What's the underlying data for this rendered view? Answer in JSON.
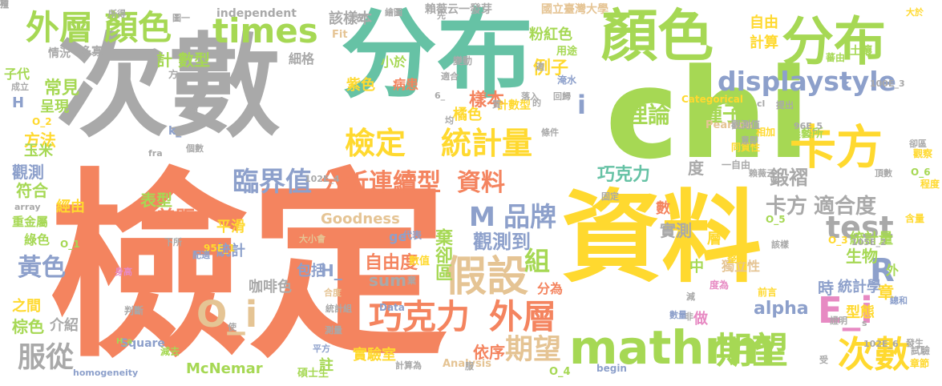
{
  "words": [
    {
      "text": "檢定",
      "color": "#f4845f"
    },
    {
      "text": "次數",
      "color": "#a9a9a9"
    },
    {
      "text": "分布",
      "color": "#66c2a5"
    },
    {
      "text": "資料",
      "color": "#ffd92f"
    },
    {
      "text": "chi",
      "color": "#a6d854"
    },
    {
      "text": "顏色",
      "color": "#a6d854"
    },
    {
      "text": "分布",
      "color": "#a6d854"
    },
    {
      "text": "卡方",
      "color": "#ffd92f"
    },
    {
      "text": "mathrm",
      "color": "#a6d854"
    },
    {
      "text": "期望",
      "color": "#a6d854"
    },
    {
      "text": "次數",
      "color": "#ffd92f"
    },
    {
      "text": "檢定",
      "color": "#ffd92f"
    },
    {
      "text": "統計量",
      "color": "#ffd92f"
    },
    {
      "text": "外層",
      "color": "#a6d854"
    },
    {
      "text": "顏色",
      "color": "#a6d854"
    },
    {
      "text": "times",
      "color": "#a6d854"
    },
    {
      "text": "displaystyle",
      "color": "#8da0cb"
    },
    {
      "text": "test",
      "color": "#a9a9a9"
    },
    {
      "text": "巧克力",
      "color": "#f4845f"
    },
    {
      "text": "外層",
      "color": "#f4845f"
    },
    {
      "text": "假設",
      "color": "#e5c494"
    },
    {
      "text": "O_i",
      "color": "#e5c494"
    },
    {
      "text": "E_i",
      "color": "#e78ac3"
    },
    {
      "text": "M",
      "color": "#8da0cb"
    },
    {
      "text": "品牌",
      "color": "#8da0cb"
    },
    {
      "text": "分析連續型",
      "color": "#f4845f"
    },
    {
      "text": "資料",
      "color": "#f4845f"
    },
    {
      "text": "臨界值",
      "color": "#8da0cb"
    },
    {
      "text": "期望",
      "color": "#e5c494"
    },
    {
      "text": "服從",
      "color": "#a9a9a9"
    },
    {
      "text": "黃色",
      "color": "#8da0cb"
    },
    {
      "text": "R",
      "color": "#8da0cb"
    },
    {
      "text": "組",
      "color": "#a6d854"
    },
    {
      "text": "理論",
      "color": "#a6d854"
    },
    {
      "text": "卡方",
      "color": "#a9a9a9"
    },
    {
      "text": "適合度",
      "color": "#a9a9a9"
    },
    {
      "text": "i",
      "color": "#8da0cb"
    },
    {
      "text": "alpha",
      "color": "#8da0cb"
    },
    {
      "text": "巧克力",
      "color": "#66c2a5"
    },
    {
      "text": "種子",
      "color": "#a6d854"
    },
    {
      "text": "粉紅色",
      "color": "#a6d854"
    },
    {
      "text": "該樣本",
      "color": "#a9a9a9"
    },
    {
      "text": "例子",
      "color": "#ffd92f"
    },
    {
      "text": "自由",
      "color": "#ffd92f"
    },
    {
      "text": "計算",
      "color": "#ffd92f"
    },
    {
      "text": "國立臺灣大學",
      "color": "#e5c494"
    },
    {
      "text": "賴薇云一發芽",
      "color": "#a9a9a9"
    },
    {
      "text": "計 數型",
      "color": "#a6d854"
    },
    {
      "text": "小於",
      "color": "#a6d854"
    },
    {
      "text": "樣本",
      "color": "#f4845f"
    },
    {
      "text": "觀測到",
      "color": "#8da0cb"
    },
    {
      "text": "棄卻區",
      "color": "#a6d854"
    },
    {
      "text": "自由度",
      "color": "#f4845f"
    },
    {
      "text": "sum",
      "color": "#a9a9a9"
    },
    {
      "text": "Goodness",
      "color": "#e5c494"
    },
    {
      "text": "McNemar",
      "color": "#a6d854"
    },
    {
      "text": "實驗室",
      "color": "#ffd92f"
    },
    {
      "text": "依序",
      "color": "#f4845f"
    },
    {
      "text": "統計學",
      "color": "#8da0cb"
    },
    {
      "text": "生物",
      "color": "#a6d854"
    },
    {
      "text": "統計量",
      "color": "#a6d854"
    },
    {
      "text": "章",
      "color": "#ffd92f"
    },
    {
      "text": "型態",
      "color": "#ffd92f"
    },
    {
      "text": "時",
      "color": "#8da0cb"
    },
    {
      "text": "實測",
      "color": "#a9a9a9"
    },
    {
      "text": "度",
      "color": "#a9a9a9"
    },
    {
      "text": "鍛褶",
      "color": "#a9a9a9"
    },
    {
      "text": "農藝所",
      "color": "#a6d854"
    },
    {
      "text": "獨立性",
      "color": "#e5c494"
    },
    {
      "text": "常見",
      "color": "#a6d854"
    },
    {
      "text": "呈現",
      "color": "#a6d854"
    },
    {
      "text": "方法",
      "color": "#ffd92f"
    },
    {
      "text": "玉米",
      "color": "#a6d854"
    },
    {
      "text": "觀測",
      "color": "#8da0cb"
    },
    {
      "text": "符合",
      "color": "#a6d854"
    },
    {
      "text": "經由",
      "color": "#ffd92f"
    },
    {
      "text": "重金屬",
      "color": "#a6d854"
    },
    {
      "text": "綠色",
      "color": "#a6d854"
    },
    {
      "text": "棕色",
      "color": "#a6d854"
    },
    {
      "text": "之間",
      "color": "#ffd92f"
    },
    {
      "text": "介紹",
      "color": "#a9a9a9"
    },
    {
      "text": "包括",
      "color": "#8da0cb"
    },
    {
      "text": "咖啡色",
      "color": "#a9a9a9"
    },
    {
      "text": "統計",
      "color": "#8da0cb"
    },
    {
      "text": "差距",
      "color": "#f4845f"
    },
    {
      "text": "表型",
      "color": "#a6d854"
    },
    {
      "text": "平滑",
      "color": "#ffd92f"
    },
    {
      "text": "紫色",
      "color": "#ffd92f"
    },
    {
      "text": "橘色",
      "color": "#ffd92f"
    },
    {
      "text": "病患",
      "color": "#f4845f"
    },
    {
      "text": "計數型",
      "color": "#ffd92f"
    },
    {
      "text": "細格",
      "color": "#a9a9a9"
    },
    {
      "text": "情況",
      "color": "#a9a9a9"
    },
    {
      "text": "多寡",
      "color": "#a9a9a9"
    },
    {
      "text": "子代",
      "color": "#a6d854"
    },
    {
      "text": "兩",
      "color": "#a9a9a9"
    },
    {
      "text": "分為",
      "color": "#f4845f"
    },
    {
      "text": "數",
      "color": "#f4845f"
    },
    {
      "text": "中",
      "color": "#a6d854"
    },
    {
      "text": "做",
      "color": "#e78ac3"
    },
    {
      "text": "層",
      "color": "#ffd92f"
    },
    {
      "text": "外",
      "color": "#a6d854"
    },
    {
      "text": "註",
      "color": "#a6d854"
    },
    {
      "text": "H_",
      "color": "#8da0cb"
    },
    {
      "text": "H",
      "color": "#8da0cb"
    },
    {
      "text": "k_",
      "color": "#8da0cb"
    },
    {
      "text": "k",
      "color": "#8da0cb"
    },
    {
      "text": "independent",
      "color": "#a9a9a9"
    },
    {
      "text": "Fit",
      "color": "#e5c494"
    },
    {
      "text": "Data",
      "color": "#8da0cb"
    },
    {
      "text": "Square",
      "color": "#8da0cb"
    },
    {
      "text": "Analysis",
      "color": "#e5c494"
    },
    {
      "text": "Categorical",
      "color": "#ffd92f"
    },
    {
      "text": "Pearson",
      "color": "#e5c494"
    },
    {
      "text": "homogeneity",
      "color": "#8da0cb"
    },
    {
      "text": "begin",
      "color": "#8da0cb"
    },
    {
      "text": "array",
      "color": "#a9a9a9"
    },
    {
      "text": "fra",
      "color": "#a9a9a9"
    },
    {
      "text": "ge",
      "color": "#8da0cb"
    },
    {
      "text": "代表",
      "color": "#8da0cb"
    },
    {
      "text": "數值",
      "color": "#ffd92f"
    },
    {
      "text": "碩士生",
      "color": "#a6d854"
    },
    {
      "text": "用途",
      "color": "#a6d854"
    },
    {
      "text": "土壤",
      "color": "#a6d854"
    },
    {
      "text": "蕃由",
      "color": "#a6d854"
    },
    {
      "text": "整數",
      "color": "#ffd92f"
    },
    {
      "text": "前言",
      "color": "#ffd92f"
    },
    {
      "text": "含量",
      "color": "#ffd92f"
    },
    {
      "text": "觀察",
      "color": "#ffd92f"
    },
    {
      "text": "程度",
      "color": "#ffd92f"
    },
    {
      "text": "O_6",
      "color": "#a6d854"
    },
    {
      "text": "O_5",
      "color": "#a6d854"
    },
    {
      "text": "O_4",
      "color": "#a6d854"
    },
    {
      "text": "O_3",
      "color": "#ffd92f"
    },
    {
      "text": "O_2",
      "color": "#ffd92f"
    },
    {
      "text": "O_1",
      "color": "#a6d854"
    },
    {
      "text": "100E_3",
      "color": "#a9a9a9"
    },
    {
      "text": "96E_5",
      "color": "#a9a9a9"
    },
    {
      "text": "102E_4",
      "color": "#a9a9a9"
    },
    {
      "text": "95E_1",
      "color": "#ffd92f"
    },
    {
      "text": "105E_2",
      "color": "#a9a9a9"
    },
    {
      "text": "102E_6",
      "color": "#a9a9a9"
    },
    {
      "text": "H_a",
      "color": "#a6d854"
    },
    {
      "text": "計算為",
      "color": "#a9a9a9"
    },
    {
      "text": "減去",
      "color": "#a6d854"
    },
    {
      "text": "淹水",
      "color": "#8da0cb"
    },
    {
      "text": "身高",
      "color": "#e78ac3"
    },
    {
      "text": "大小會",
      "color": "#e5c494"
    },
    {
      "text": "判斷",
      "color": "#a9a9a9"
    },
    {
      "text": "統計組",
      "color": "#a9a9a9"
    },
    {
      "text": "合度",
      "color": "#e5c494"
    },
    {
      "text": "度為",
      "color": "#e78ac3"
    },
    {
      "text": "同質性",
      "color": "#ffd92f"
    },
    {
      "text": "相加",
      "color": "#ffd92f"
    },
    {
      "text": "頂數",
      "color": "#a9a9a9"
    },
    {
      "text": "觀測值",
      "color": "#a9a9a9"
    },
    {
      "text": "提出",
      "color": "#a9a9a9"
    },
    {
      "text": "一自由",
      "color": "#a9a9a9"
    },
    {
      "text": "卻區",
      "color": "#a9a9a9"
    },
    {
      "text": "發生",
      "color": "#a9a9a9"
    },
    {
      "text": "試驗",
      "color": "#a9a9a9"
    },
    {
      "text": "章節",
      "color": "#ffd92f"
    },
    {
      "text": "個數",
      "color": "#a9a9a9"
    },
    {
      "text": "成立",
      "color": "#a9a9a9"
    },
    {
      "text": "條件",
      "color": "#a9a9a9"
    },
    {
      "text": "繪圖",
      "color": "#a9a9a9"
    },
    {
      "text": "回歸",
      "color": "#a9a9a9"
    },
    {
      "text": "變動",
      "color": "#a9a9a9"
    },
    {
      "text": "適合",
      "color": "#a9a9a9"
    },
    {
      "text": "測量",
      "color": "#a9a9a9"
    },
    {
      "text": "平方",
      "color": "#8da0cb"
    },
    {
      "text": "數量",
      "color": "#8da0cb"
    },
    {
      "text": "總和",
      "color": "#8da0cb"
    },
    {
      "text": "證明",
      "color": "#a9a9a9"
    },
    {
      "text": "下所",
      "color": "#a9a9a9"
    },
    {
      "text": "配適",
      "color": "#8da0cb"
    },
    {
      "text": "大於",
      "color": "#ffd92f"
    },
    {
      "text": "所得",
      "color": "#a9a9a9"
    },
    {
      "text": "圖一",
      "color": "#a9a9a9"
    },
    {
      "text": "表",
      "color": "#a9a9a9"
    },
    {
      "text": "方",
      "color": "#a9a9a9"
    },
    {
      "text": "先",
      "color": "#a9a9a9"
    },
    {
      "text": "落入",
      "color": "#a9a9a9"
    },
    {
      "text": "賴薇云",
      "color": "#a9a9a9"
    },
    {
      "text": "固定",
      "color": "#a9a9a9"
    },
    {
      "text": "意即",
      "color": "#a9a9a9"
    },
    {
      "text": "減",
      "color": "#a9a9a9"
    },
    {
      "text": "非",
      "color": "#a9a9a9"
    },
    {
      "text": "服",
      "color": "#a9a9a9"
    },
    {
      "text": "受",
      "color": "#a9a9a9"
    },
    {
      "text": "均",
      "color": "#a9a9a9"
    },
    {
      "text": "該樣",
      "color": "#a9a9a9"
    },
    {
      "text": "棄",
      "color": "#a9a9a9"
    },
    {
      "text": "質",
      "color": "#a9a9a9"
    },
    {
      "text": "適",
      "color": "#a9a9a9"
    },
    {
      "text": "的",
      "color": "#a9a9a9"
    },
    {
      "text": "使",
      "color": "#a9a9a9"
    },
    {
      "text": "s",
      "color": "#a9a9a9"
    },
    {
      "text": "cl",
      "color": "#a9a9a9"
    },
    {
      "text": "6_",
      "color": "#a9a9a9"
    },
    {
      "text": "裡",
      "color": "#a9a9a9"
    },
    {
      "text": "殖",
      "color": "#a9a9a9"
    }
  ]
}
